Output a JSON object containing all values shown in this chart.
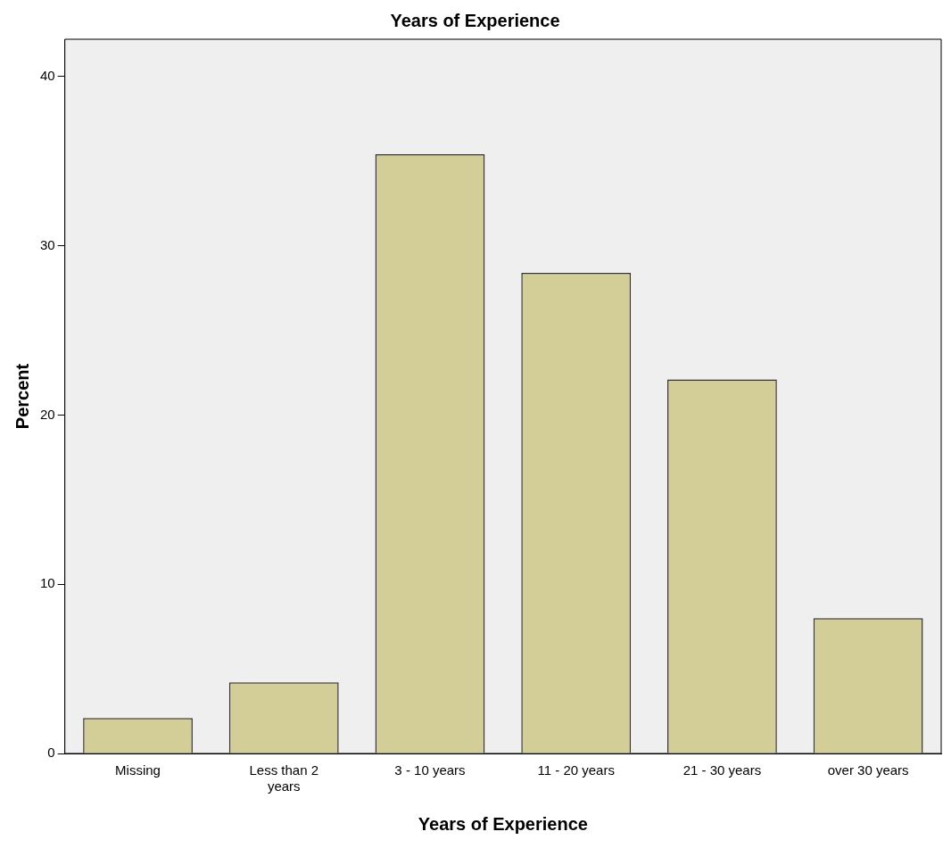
{
  "chart_data": {
    "type": "bar",
    "title": "Years of Experience",
    "xlabel": "Years of Experience",
    "ylabel": "Percent",
    "categories": [
      "Missing",
      "Less than 2 years",
      "3 - 10 years",
      "11 - 20 years",
      "21 - 30 years",
      "over 30 years"
    ],
    "values": [
      2.1,
      4.2,
      35.4,
      28.4,
      22.1,
      8.0
    ],
    "color": "#d3cd97",
    "ylim": [
      0,
      42.2
    ],
    "yticks": [
      0,
      10,
      20,
      30,
      40
    ],
    "grid": false,
    "legend": false
  }
}
